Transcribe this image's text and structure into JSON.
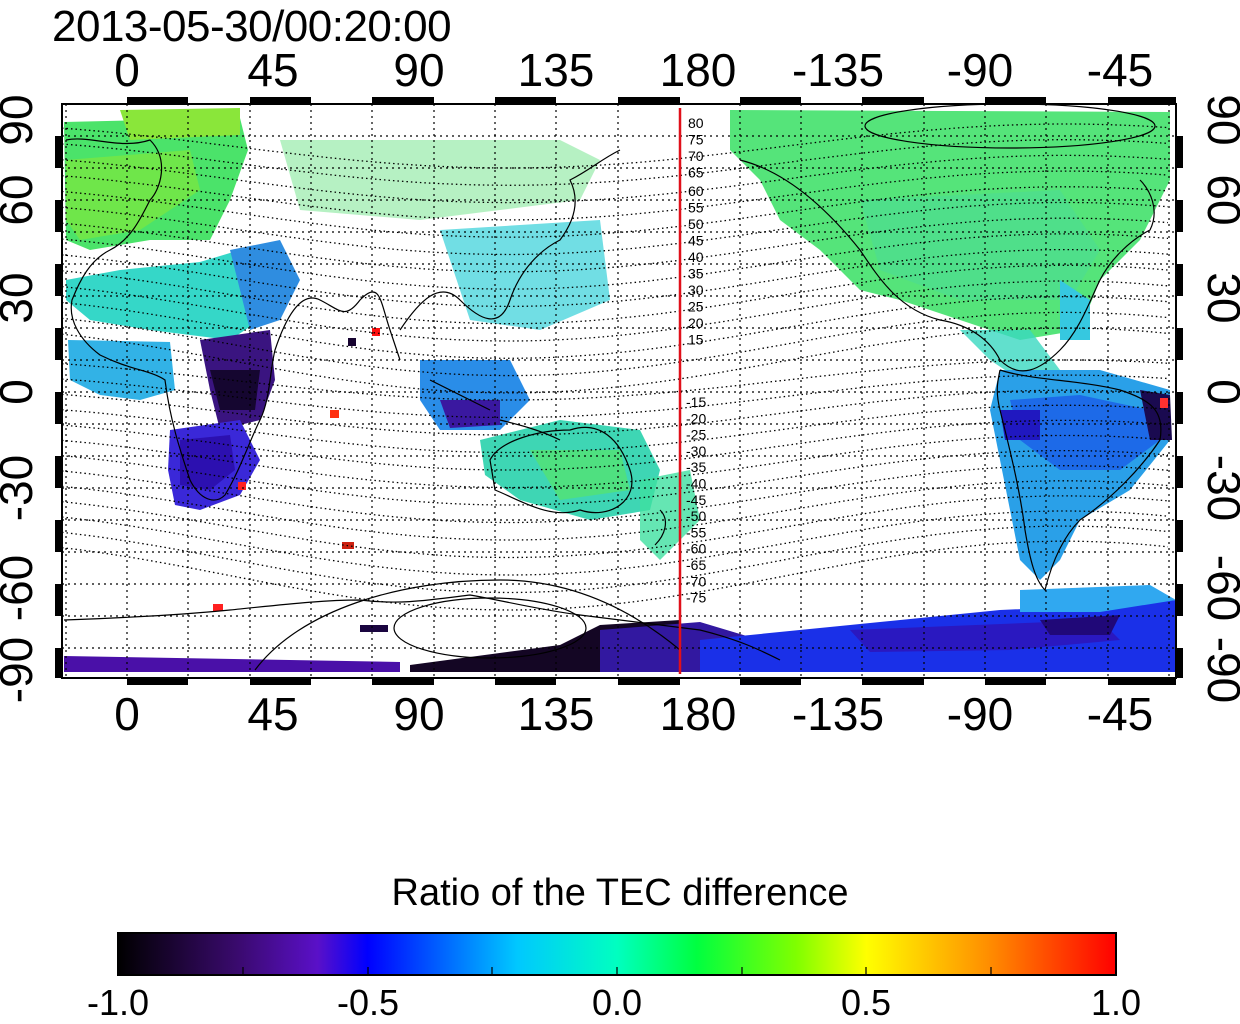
{
  "map": {
    "title": "2013-05-30/00:20:00",
    "x_tick_labels": [
      "0",
      "45",
      "90",
      "135",
      "180",
      "-135",
      "-90",
      "-45"
    ],
    "y_tick_labels_left": [
      "90",
      "60",
      "30",
      "0",
      "-30",
      "-60",
      "-90"
    ],
    "y_tick_labels_right": [
      "90",
      "60",
      "30",
      "0",
      "-30",
      "-60",
      "-90"
    ],
    "contour_labels_upper": [
      "80",
      "75",
      "70",
      "65",
      "60",
      "55",
      "50",
      "45",
      "40",
      "35",
      "30",
      "25",
      "20",
      "15"
    ],
    "contour_labels_lower": [
      "-15",
      "-20",
      "-25",
      "-30",
      "-35",
      "-40",
      "-45",
      "-50",
      "-55",
      "-60",
      "-65",
      "-70",
      "-75"
    ],
    "meridian_line_color": "#e0101a"
  },
  "colorbar": {
    "title": "Ratio of the TEC difference",
    "tick_labels": [
      "-1.0",
      "-0.5",
      "0.0",
      "0.5",
      "1.0"
    ],
    "stops": [
      "#000000",
      "#3a0a6e",
      "#5a10c8",
      "#0000ff",
      "#00c8ff",
      "#00ffc0",
      "#00ff40",
      "#80ff00",
      "#ffff00",
      "#ff9000",
      "#ff0000"
    ]
  }
}
